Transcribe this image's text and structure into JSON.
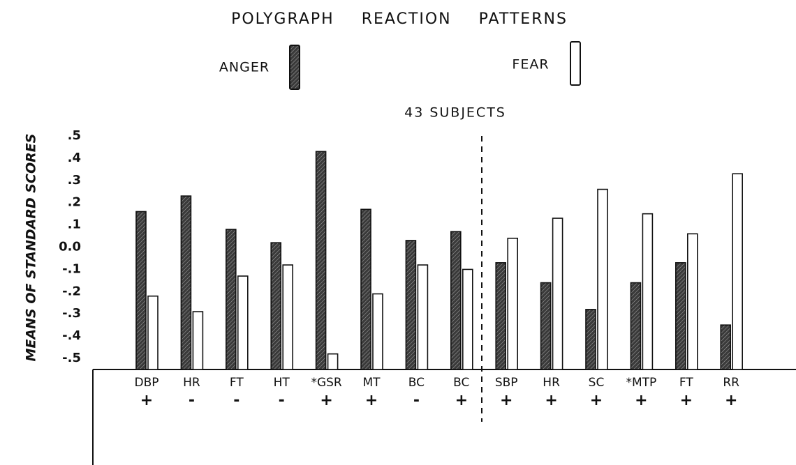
{
  "chart_data": {
    "type": "bar",
    "title": "POLYGRAPH REACTION PATTERNS",
    "subtitle": "43 SUBJECTS",
    "y_label": "MEANS OF STANDARD SCORES",
    "categories": [
      "DBP",
      "HR",
      "FT",
      "HT",
      "*GSR",
      "MT",
      "BC",
      "BC",
      "SBP",
      "HR",
      "SC",
      "*MTP",
      "FT",
      "RR"
    ],
    "signs": [
      "+",
      "-",
      "-",
      "-",
      "+",
      "+",
      "-",
      "+",
      "+",
      "+",
      "+",
      "+",
      "+",
      "+"
    ],
    "series": [
      {
        "name": "ANGER",
        "color": "#3a3a3a",
        "values": [
          0.16,
          0.23,
          0.08,
          0.02,
          0.43,
          0.17,
          0.03,
          0.07,
          -0.07,
          -0.16,
          -0.28,
          -0.16,
          -0.07,
          -0.35
        ]
      },
      {
        "name": "FEAR",
        "color": "#ffffff",
        "values": [
          -0.22,
          -0.29,
          -0.13,
          -0.08,
          -0.48,
          -0.21,
          -0.08,
          -0.1,
          0.04,
          0.13,
          0.26,
          0.15,
          0.06,
          0.33
        ]
      }
    ],
    "ylim": [
      -0.55,
      0.5
    ],
    "yticks": [
      {
        "value": 0.5,
        "label": ".5"
      },
      {
        "value": 0.4,
        "label": ".4"
      },
      {
        "value": 0.3,
        "label": ".3"
      },
      {
        "value": 0.2,
        "label": ".2"
      },
      {
        "value": 0.1,
        "label": ".1"
      },
      {
        "value": 0.0,
        "label": "0.0"
      },
      {
        "value": -0.1,
        "label": "-.1"
      },
      {
        "value": -0.2,
        "label": "-.2"
      },
      {
        "value": -0.3,
        "label": "-.3"
      },
      {
        "value": -0.4,
        "label": "-.4"
      },
      {
        "value": -0.5,
        "label": "-.5"
      }
    ],
    "grid": false
  }
}
